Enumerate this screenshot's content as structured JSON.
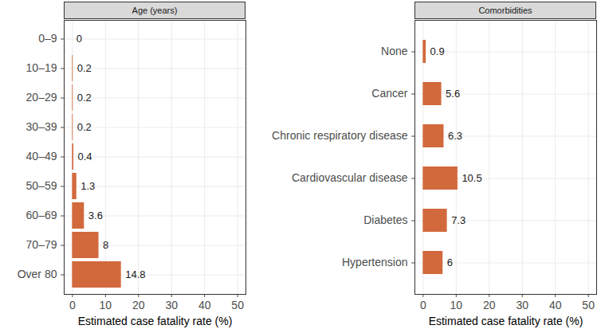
{
  "chart_data": [
    {
      "type": "bar",
      "title": "Age (years)",
      "orientation": "horizontal",
      "categories": [
        "0–9",
        "10–19",
        "20–29",
        "30–39",
        "40–49",
        "50–59",
        "60–69",
        "70–79",
        "Over 80"
      ],
      "values": [
        0,
        0.2,
        0.2,
        0.2,
        0.4,
        1.3,
        3.6,
        8,
        14.8
      ],
      "color": "#d2693c",
      "x_label": "Estimated case fatality rate (%)",
      "xlim": [
        -2.5,
        52.5
      ],
      "xticks": [
        0,
        10,
        20,
        30,
        40,
        50
      ],
      "grid": true,
      "data_labels": true
    },
    {
      "type": "bar",
      "title": "Comorbidities",
      "orientation": "horizontal",
      "categories": [
        "None",
        "Cancer",
        "Chronic respiratory disease",
        "Cardiovascular disease",
        "Diabetes",
        "Hypertension"
      ],
      "values": [
        0.9,
        5.6,
        6.3,
        10.5,
        7.3,
        6
      ],
      "color": "#d2693c",
      "x_label": "Estimated case fatality rate (%)",
      "xlim": [
        -2.5,
        52.5
      ],
      "xticks": [
        0,
        10,
        20,
        30,
        40,
        50
      ],
      "grid": true,
      "data_labels": true
    }
  ]
}
